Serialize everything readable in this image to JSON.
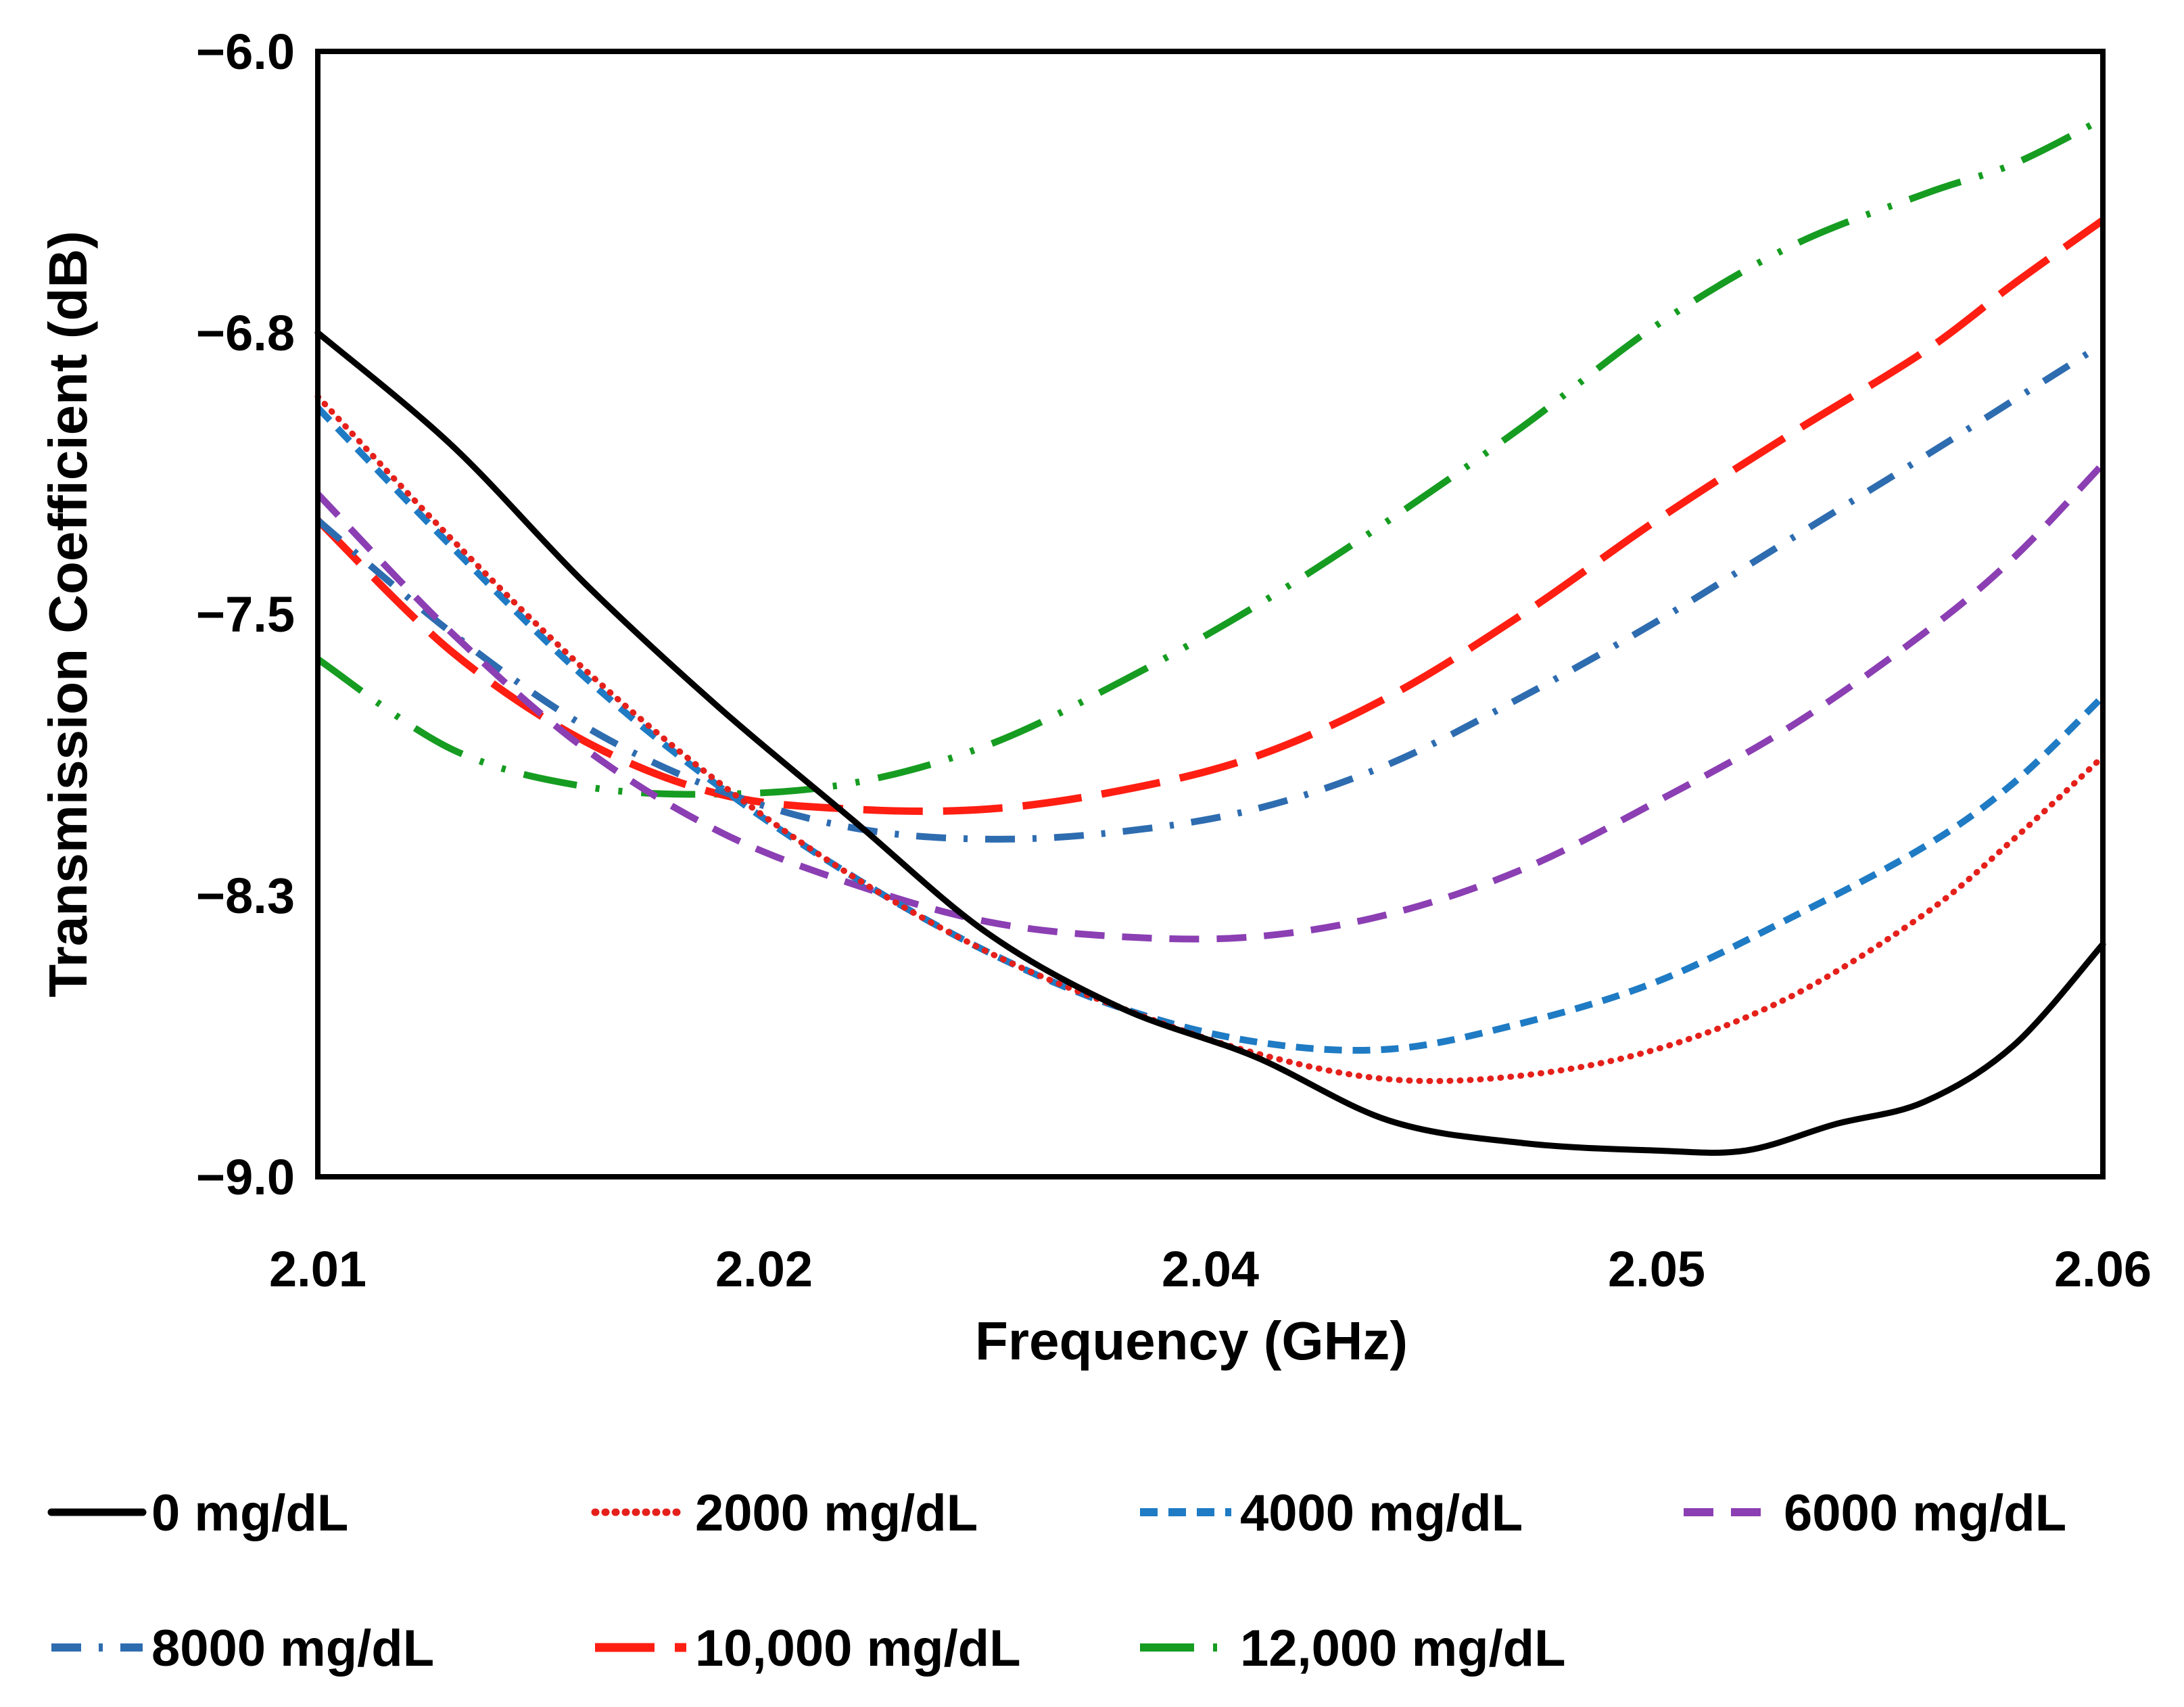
{
  "chart_data": {
    "type": "line",
    "title": "",
    "xlabel": "Frequency (GHz)",
    "ylabel": "Transmission Coefficient (dB)",
    "x_tick_labels": [
      "2.01",
      "2.02",
      "2.04",
      "2.05",
      "2.06"
    ],
    "y_tick_labels": [
      "−6.0",
      "−6.8",
      "−7.5",
      "−8.3",
      "−9.0"
    ],
    "ylim": [
      -9.0,
      -6.0
    ],
    "x_categories": 5,
    "grid": false,
    "legend_position": "bottom",
    "series": [
      {
        "name": "0 mg/dL",
        "color": "#000000",
        "dash": "solid",
        "x": [
          0,
          0.3,
          0.6,
          0.9,
          1.2,
          1.5,
          1.8,
          2.1,
          2.4,
          2.7,
          3.0,
          3.2,
          3.4,
          3.6,
          3.8,
          4.0
        ],
        "y": [
          -6.75,
          -7.05,
          -7.42,
          -7.75,
          -8.05,
          -8.35,
          -8.55,
          -8.68,
          -8.85,
          -8.91,
          -8.93,
          -8.93,
          -8.86,
          -8.8,
          -8.65,
          -8.38
        ]
      },
      {
        "name": "2000 mg/dL",
        "color": "#e5201b",
        "dash": "dotted",
        "x": [
          0,
          0.3,
          0.6,
          0.9,
          1.2,
          1.5,
          1.8,
          2.1,
          2.4,
          2.7,
          3.0,
          3.3,
          3.6,
          3.8,
          4.0
        ],
        "y": [
          -6.92,
          -7.3,
          -7.65,
          -7.95,
          -8.2,
          -8.4,
          -8.55,
          -8.67,
          -8.74,
          -8.73,
          -8.66,
          -8.52,
          -8.3,
          -8.1,
          -7.88
        ]
      },
      {
        "name": "4000 mg/dL",
        "color": "#1f7bc4",
        "dash": "short-dash",
        "x": [
          0,
          0.3,
          0.6,
          0.9,
          1.2,
          1.5,
          1.8,
          2.1,
          2.4,
          2.7,
          3.0,
          3.3,
          3.6,
          3.8,
          4.0
        ],
        "y": [
          -6.95,
          -7.32,
          -7.67,
          -7.96,
          -8.2,
          -8.4,
          -8.55,
          -8.64,
          -8.66,
          -8.59,
          -8.48,
          -8.31,
          -8.12,
          -7.95,
          -7.72
        ]
      },
      {
        "name": "6000 mg/dL",
        "color": "#8b3fb3",
        "dash": "dash",
        "x": [
          0,
          0.3,
          0.6,
          0.9,
          1.2,
          1.5,
          1.8,
          2.1,
          2.4,
          2.7,
          3.0,
          3.3,
          3.6,
          3.8,
          4.0
        ],
        "y": [
          -7.18,
          -7.55,
          -7.86,
          -8.08,
          -8.22,
          -8.32,
          -8.36,
          -8.36,
          -8.3,
          -8.18,
          -8.0,
          -7.8,
          -7.55,
          -7.35,
          -7.1
        ]
      },
      {
        "name": "8000 mg/dL",
        "color": "#2e6cb0",
        "dash": "dash-dot",
        "x": [
          0,
          0.3,
          0.6,
          0.9,
          1.2,
          1.5,
          1.8,
          2.1,
          2.4,
          2.7,
          3.0,
          3.3,
          3.6,
          3.8,
          4.0
        ],
        "y": [
          -7.25,
          -7.55,
          -7.8,
          -7.97,
          -8.07,
          -8.1,
          -8.08,
          -8.02,
          -7.9,
          -7.72,
          -7.52,
          -7.3,
          -7.08,
          -6.93,
          -6.78
        ]
      },
      {
        "name": "10,000 mg/dL",
        "color": "#ff1e12",
        "dash": "long-dash",
        "x": [
          0,
          0.3,
          0.6,
          0.9,
          1.2,
          1.5,
          1.8,
          2.1,
          2.4,
          2.7,
          3.0,
          3.3,
          3.6,
          3.8,
          4.0
        ],
        "y": [
          -7.25,
          -7.6,
          -7.84,
          -7.98,
          -8.02,
          -8.02,
          -7.97,
          -7.88,
          -7.72,
          -7.5,
          -7.25,
          -7.02,
          -6.8,
          -6.62,
          -6.45
        ]
      },
      {
        "name": "12,000 mg/dL",
        "color": "#169c21",
        "dash": "dash-dot-dot",
        "x": [
          0,
          0.3,
          0.6,
          0.9,
          1.2,
          1.5,
          1.8,
          2.1,
          2.4,
          2.7,
          3.0,
          3.3,
          3.6,
          3.8,
          4.0
        ],
        "y": [
          -7.62,
          -7.86,
          -7.96,
          -7.98,
          -7.95,
          -7.85,
          -7.68,
          -7.48,
          -7.25,
          -7.0,
          -6.73,
          -6.52,
          -6.38,
          -6.3,
          -6.18
        ]
      }
    ]
  }
}
